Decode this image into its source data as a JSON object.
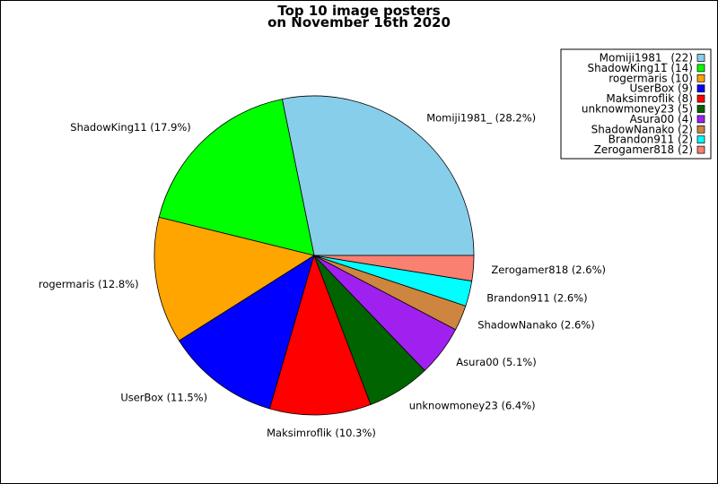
{
  "chart_data": {
    "type": "pie",
    "title_line1": "Top 10 image posters",
    "title_line2": "on November 16th 2020",
    "slices": [
      {
        "name": "Momiji1981_",
        "count": 22,
        "percent": "28.2%",
        "color": "#87ceeb"
      },
      {
        "name": "ShadowKing11",
        "count": 14,
        "percent": "17.9%",
        "color": "#00ff00"
      },
      {
        "name": "rogermaris",
        "count": 10,
        "percent": "12.8%",
        "color": "#ffa500"
      },
      {
        "name": "UserBox",
        "count": 9,
        "percent": "11.5%",
        "color": "#0000ff"
      },
      {
        "name": "Maksimroflik",
        "count": 8,
        "percent": "10.3%",
        "color": "#ff0000"
      },
      {
        "name": "unknowmoney23",
        "count": 5,
        "percent": "6.4%",
        "color": "#006400"
      },
      {
        "name": "Asura00",
        "count": 4,
        "percent": "5.1%",
        "color": "#a020f0"
      },
      {
        "name": "ShadowNanako",
        "count": 2,
        "percent": "2.6%",
        "color": "#cd853f"
      },
      {
        "name": "Brandon911",
        "count": 2,
        "percent": "2.6%",
        "color": "#00ffff"
      },
      {
        "name": "Zerogamer818",
        "count": 2,
        "percent": "2.6%",
        "color": "#fa8072"
      }
    ],
    "legend_position": "top-right",
    "start_direction": "counterclockwise from 3 o'clock"
  }
}
